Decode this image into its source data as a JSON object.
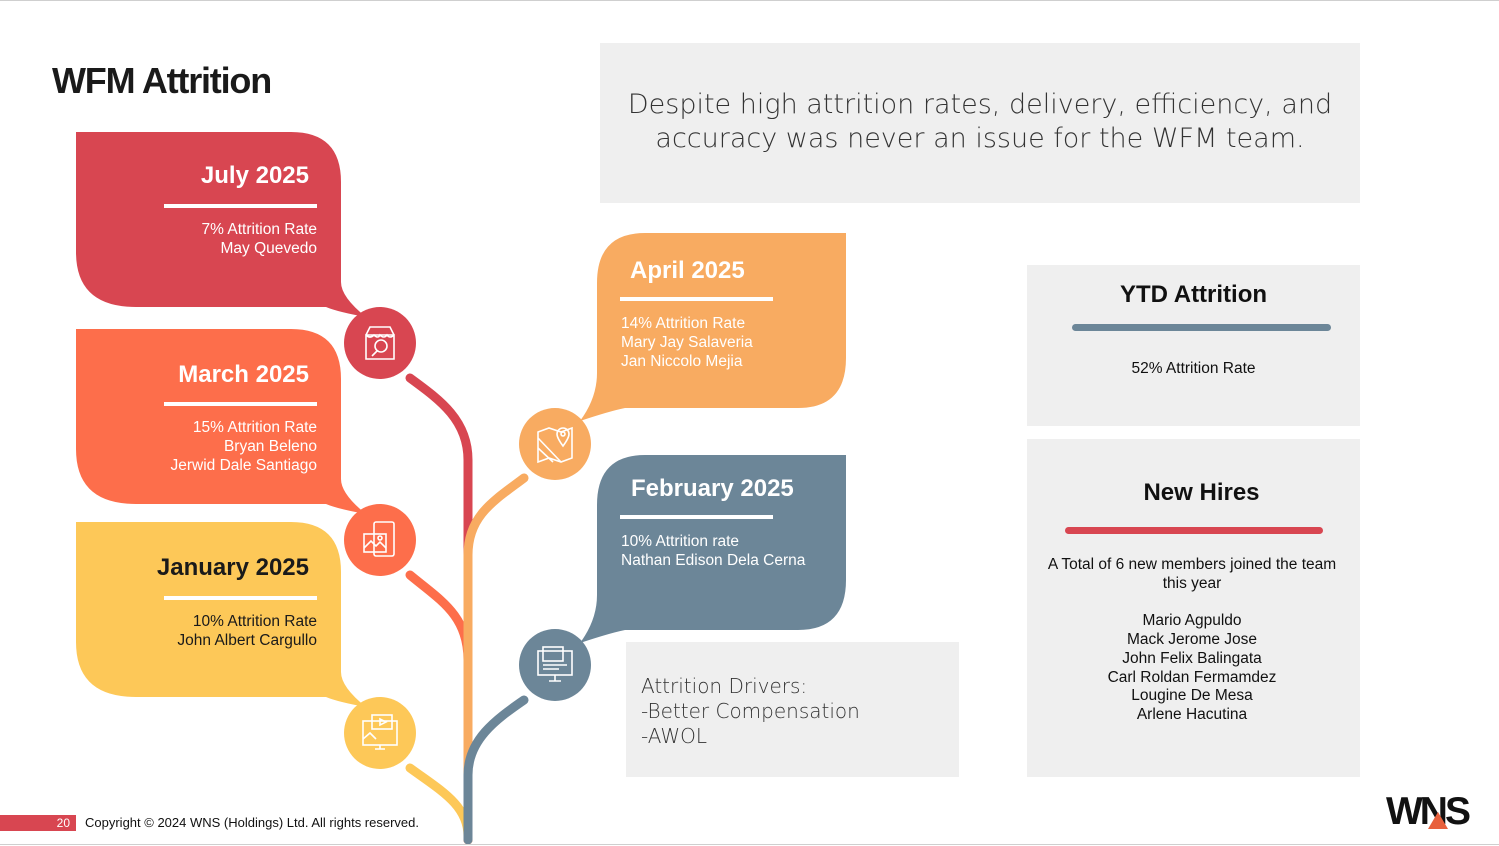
{
  "title": "WFM Attrition",
  "quote": "Despite high attrition rates, delivery, efficiency, and accuracy was never an issue for the WFM team.",
  "timeline": {
    "july": {
      "title": "July 2025",
      "rate": "7% Attrition Rate",
      "names": [
        "May Quevedo"
      ],
      "color": "#d84651"
    },
    "march": {
      "title": "March 2025",
      "rate": "15% Attrition Rate",
      "names": [
        "Bryan Beleno",
        "Jerwid Dale Santiago"
      ],
      "color": "#fd6e4b"
    },
    "january": {
      "title": "January 2025",
      "rate": "10% Attrition Rate",
      "names": [
        "John Albert Cargullo"
      ],
      "color": "#fdc858"
    },
    "april": {
      "title": "April 2025",
      "rate": "14% Attrition Rate",
      "names": [
        "Mary Jay Salaveria",
        "Jan Niccolo Mejia"
      ],
      "color": "#f8ab61"
    },
    "february": {
      "title": "February 2025",
      "rate": "10% Attrition rate",
      "names": [
        "Nathan Edison Dela Cerna"
      ],
      "color": "#6c8698"
    }
  },
  "icons": {
    "july": "shop-search-icon",
    "march": "mobile-gallery-icon",
    "january": "monitor-video-icon",
    "april": "map-pin-icon",
    "february": "computer-icon"
  },
  "drivers": {
    "heading": "Attrition Drivers:",
    "items": [
      "-Better Compensation",
      "-AWOL"
    ]
  },
  "ytd": {
    "title": "YTD Attrition",
    "rate": "52% Attrition Rate",
    "bar_color": "#6c8698"
  },
  "new_hires": {
    "title": "New Hires",
    "summary": "A Total of 6 new members joined the team this year",
    "names": [
      "Mario Agpuldo",
      "Mack Jerome Jose",
      "John Felix Balingata",
      "Carl Roldan Fermamdez",
      "Lougine De Mesa",
      "Arlene Hacutina"
    ],
    "bar_color": "#d84651"
  },
  "footer": {
    "page_number": "20",
    "copyright": "Copyright © 2024 WNS (Holdings) Ltd. All rights reserved.",
    "logo": "WNS"
  }
}
